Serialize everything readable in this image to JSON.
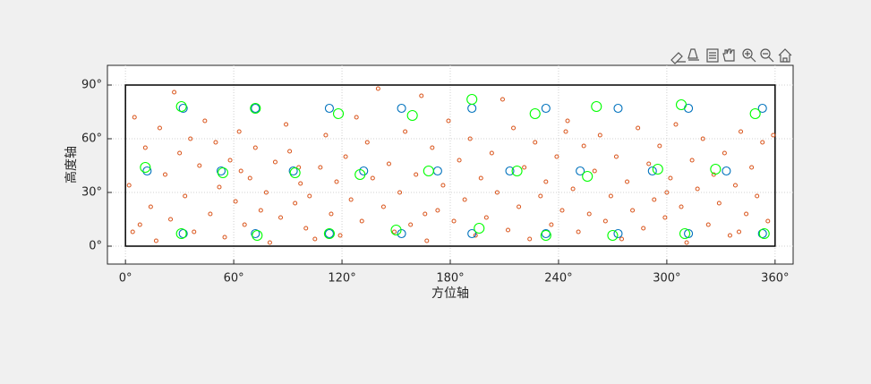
{
  "chart_data": {
    "type": "scatter",
    "x_label": "方位轴",
    "y_label": "高度轴",
    "xlim": [
      -10,
      370
    ],
    "ylim": [
      -10,
      101
    ],
    "xticks": [
      {
        "value": 0,
        "label": "0°"
      },
      {
        "value": 60,
        "label": "60°"
      },
      {
        "value": 120,
        "label": "120°"
      },
      {
        "value": 180,
        "label": "180°"
      },
      {
        "value": 240,
        "label": "240°"
      },
      {
        "value": 300,
        "label": "300°"
      },
      {
        "value": 360,
        "label": "360°"
      }
    ],
    "yticks": [
      {
        "value": 0,
        "label": "0°"
      },
      {
        "value": 30,
        "label": "30°"
      },
      {
        "value": 60,
        "label": "60°"
      },
      {
        "value": 90,
        "label": "90°"
      }
    ],
    "grid": true,
    "boundary_x": [
      0,
      360
    ],
    "boundary_y": [
      0,
      90
    ],
    "series": [
      {
        "color": "#D95319",
        "x": [
          2,
          5,
          8,
          11,
          14,
          17,
          19,
          22,
          25,
          27,
          30,
          33,
          36,
          38,
          41,
          44,
          47,
          50,
          52,
          55,
          58,
          61,
          63,
          66,
          69,
          72,
          75,
          78,
          80,
          83,
          86,
          89,
          91,
          94,
          97,
          100,
          102,
          105,
          108,
          111,
          114,
          117,
          119,
          122,
          125,
          128,
          131,
          134,
          137,
          140,
          143,
          146,
          149,
          152,
          155,
          158,
          161,
          164,
          167,
          170,
          173,
          176,
          179,
          182,
          185,
          188,
          191,
          194,
          197,
          200,
          203,
          206,
          209,
          212,
          215,
          218,
          221,
          224,
          227,
          230,
          233,
          236,
          239,
          242,
          245,
          248,
          251,
          254,
          257,
          260,
          263,
          266,
          269,
          272,
          275,
          278,
          281,
          284,
          287,
          290,
          293,
          296,
          299,
          302,
          305,
          308,
          311,
          314,
          317,
          320,
          323,
          326,
          329,
          332,
          335,
          338,
          341,
          344,
          347,
          350,
          353,
          356,
          359,
          4,
          64,
          96,
          166,
          244,
          300,
          340
        ],
        "values": [
          34,
          72,
          12,
          55,
          22,
          3,
          66,
          40,
          15,
          86,
          52,
          28,
          60,
          8,
          45,
          70,
          18,
          58,
          33,
          5,
          48,
          25,
          64,
          12,
          38,
          55,
          20,
          30,
          2,
          47,
          16,
          68,
          53,
          24,
          35,
          10,
          28,
          4,
          44,
          62,
          18,
          36,
          6,
          50,
          26,
          72,
          14,
          58,
          38,
          88,
          22,
          46,
          8,
          30,
          64,
          12,
          40,
          84,
          3,
          55,
          20,
          34,
          70,
          14,
          48,
          26,
          60,
          6,
          38,
          16,
          52,
          30,
          82,
          9,
          66,
          22,
          44,
          4,
          58,
          28,
          36,
          12,
          50,
          20,
          70,
          32,
          8,
          56,
          18,
          42,
          62,
          14,
          28,
          50,
          4,
          36,
          20,
          66,
          10,
          46,
          26,
          56,
          16,
          38,
          68,
          22,
          2,
          48,
          32,
          60,
          12,
          40,
          24,
          52,
          6,
          34,
          64,
          18,
          44,
          28,
          58,
          14,
          62,
          8,
          42,
          44,
          18,
          64,
          30,
          8
        ]
      },
      {
        "color": "#0072BD",
        "x": [
          32,
          12,
          53,
          72,
          93,
          113,
          132,
          153,
          173,
          192,
          213,
          233,
          252,
          273,
          292,
          312,
          333,
          353,
          32,
          72,
          113,
          153,
          192,
          233,
          273,
          312,
          353
        ],
        "values": [
          77,
          42,
          42,
          77,
          42,
          77,
          42,
          77,
          42,
          77,
          42,
          77,
          42,
          77,
          42,
          77,
          42,
          77,
          7,
          7,
          7,
          7,
          7,
          7,
          7,
          7,
          7
        ]
      },
      {
        "color": "#00FF00",
        "x": [
          31,
          11,
          54,
          72,
          94,
          118,
          130,
          159,
          168,
          192,
          217,
          227,
          261,
          256,
          295,
          308,
          327,
          349,
          31,
          73,
          113,
          150,
          196,
          233,
          270,
          310,
          354
        ],
        "values": [
          78,
          44,
          41,
          77,
          41,
          74,
          40,
          73,
          42,
          82,
          42,
          74,
          78,
          39,
          43,
          79,
          43,
          74,
          7,
          6,
          7,
          9,
          10,
          6,
          6,
          7,
          7
        ]
      }
    ]
  }
}
